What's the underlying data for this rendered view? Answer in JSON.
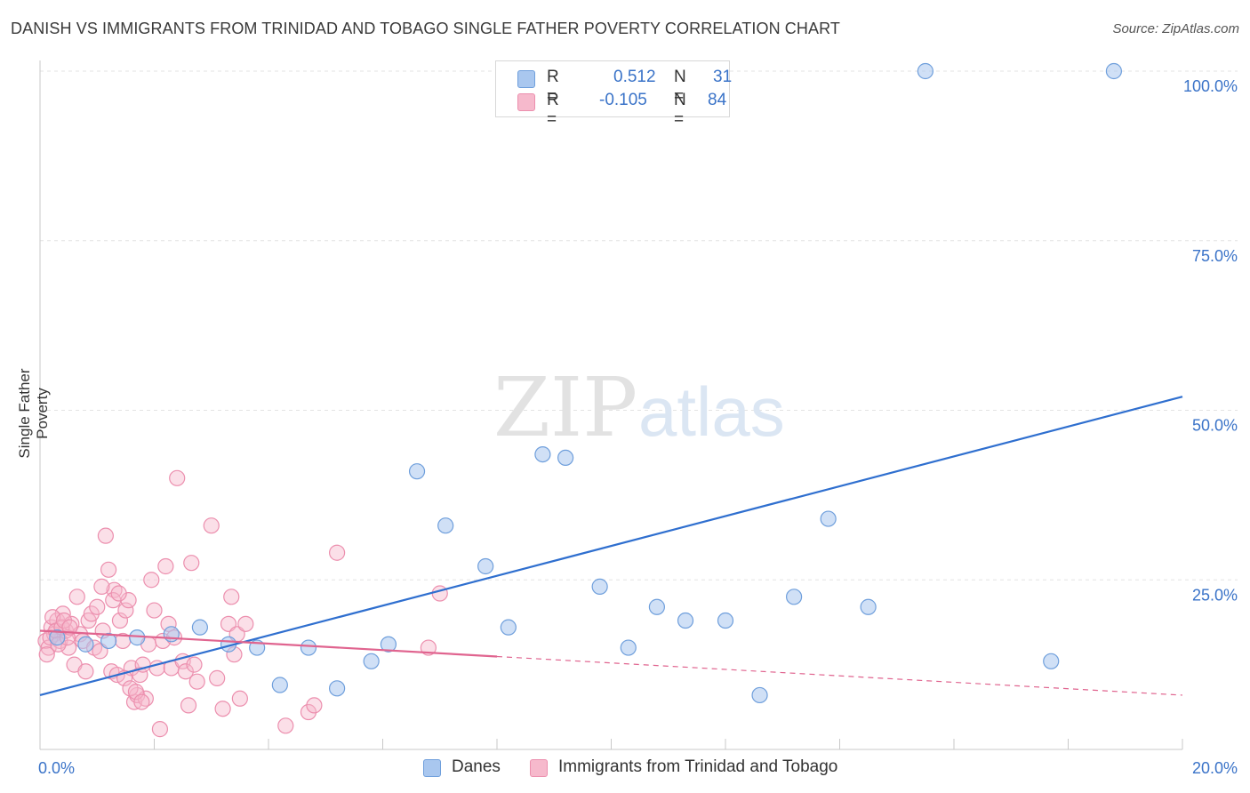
{
  "title": "DANISH VS IMMIGRANTS FROM TRINIDAD AND TOBAGO SINGLE FATHER POVERTY CORRELATION CHART",
  "source": "Source: ZipAtlas.com",
  "watermark": {
    "zip": "ZIP",
    "atlas": "atlas"
  },
  "colors": {
    "blue_fill": "#a9c7ef",
    "blue_stroke": "#6f9fdc",
    "blue_line": "#2f6fcf",
    "pink_fill": "#f6b9cc",
    "pink_stroke": "#ec8fae",
    "pink_line": "#e0648f",
    "axis_text": "#3a73c8",
    "grid": "#e3e3e3"
  },
  "legend": {
    "r_label": "R =",
    "n_label": "N =",
    "series": [
      {
        "r": "0.512",
        "n": "31"
      },
      {
        "r": "-0.105",
        "n": "84"
      }
    ]
  },
  "bottom_legend": [
    "Danes",
    "Immigrants from Trinidad and Tobago"
  ],
  "chart_data": {
    "type": "scatter",
    "ylabel": "Single Father Poverty",
    "xlim": [
      0,
      20
    ],
    "ylim": [
      0,
      105
    ],
    "x_tick_labels": [
      {
        "value": 0,
        "label": "0.0%"
      },
      {
        "value": 20,
        "label": "20.0%"
      }
    ],
    "y_tick_labels": [
      {
        "value": 25,
        "label": "25.0%"
      },
      {
        "value": 50,
        "label": "50.0%"
      },
      {
        "value": 75,
        "label": "75.0%"
      },
      {
        "value": 100,
        "label": "100.0%"
      }
    ],
    "grid": true,
    "legend_position": "top-center",
    "series": [
      {
        "name": "Danes",
        "points": [
          [
            0.3,
            16.5
          ],
          [
            1.2,
            16
          ],
          [
            1.7,
            16.5
          ],
          [
            2.3,
            17
          ],
          [
            2.8,
            18
          ],
          [
            3.3,
            15.5
          ],
          [
            3.8,
            15
          ],
          [
            4.2,
            9.5
          ],
          [
            4.7,
            15
          ],
          [
            5.2,
            9
          ],
          [
            5.8,
            13
          ],
          [
            6.1,
            15.5
          ],
          [
            6.6,
            41
          ],
          [
            7.1,
            33
          ],
          [
            7.8,
            27
          ],
          [
            8.2,
            18
          ],
          [
            8.8,
            43.5
          ],
          [
            9.2,
            43
          ],
          [
            9.8,
            24
          ],
          [
            10.3,
            15
          ],
          [
            10.8,
            21
          ],
          [
            11.3,
            19
          ],
          [
            12.0,
            19
          ],
          [
            12.6,
            8
          ],
          [
            13.2,
            22.5
          ],
          [
            13.8,
            34
          ],
          [
            14.5,
            21
          ],
          [
            15.5,
            100
          ],
          [
            18.8,
            100
          ],
          [
            17.7,
            13
          ],
          [
            0.8,
            15.5
          ]
        ],
        "trend": {
          "x": [
            0,
            20
          ],
          "y": [
            8,
            52
          ]
        }
      },
      {
        "name": "Immigrants from Trinidad and Tobago",
        "points": [
          [
            0.1,
            16
          ],
          [
            0.15,
            15
          ],
          [
            0.2,
            18
          ],
          [
            0.25,
            17
          ],
          [
            0.3,
            19
          ],
          [
            0.35,
            16
          ],
          [
            0.4,
            20
          ],
          [
            0.45,
            17.5
          ],
          [
            0.5,
            15
          ],
          [
            0.55,
            18.5
          ],
          [
            0.6,
            12.5
          ],
          [
            0.65,
            22.5
          ],
          [
            0.7,
            17
          ],
          [
            0.75,
            16
          ],
          [
            0.8,
            11.5
          ],
          [
            0.85,
            19
          ],
          [
            0.9,
            20
          ],
          [
            0.95,
            15
          ],
          [
            1.0,
            21
          ],
          [
            1.05,
            14.5
          ],
          [
            1.1,
            17.5
          ],
          [
            1.15,
            31.5
          ],
          [
            1.2,
            26.5
          ],
          [
            1.25,
            11.5
          ],
          [
            1.3,
            23.5
          ],
          [
            1.35,
            11
          ],
          [
            1.4,
            19
          ],
          [
            1.45,
            16
          ],
          [
            1.5,
            20.5
          ],
          [
            1.55,
            22
          ],
          [
            1.6,
            12
          ],
          [
            1.65,
            7
          ],
          [
            1.7,
            8
          ],
          [
            1.75,
            11
          ],
          [
            1.8,
            12.5
          ],
          [
            1.85,
            7.5
          ],
          [
            1.9,
            15.5
          ],
          [
            1.95,
            25
          ],
          [
            2.0,
            20.5
          ],
          [
            2.05,
            12
          ],
          [
            2.1,
            3
          ],
          [
            2.15,
            16
          ],
          [
            2.2,
            27
          ],
          [
            2.25,
            18.5
          ],
          [
            2.3,
            12
          ],
          [
            2.35,
            16.5
          ],
          [
            2.4,
            40
          ],
          [
            2.5,
            13
          ],
          [
            2.55,
            11.5
          ],
          [
            2.6,
            6.5
          ],
          [
            2.65,
            27.5
          ],
          [
            2.7,
            12.5
          ],
          [
            2.75,
            10
          ],
          [
            3.0,
            33
          ],
          [
            3.1,
            10.5
          ],
          [
            3.2,
            6
          ],
          [
            3.3,
            18.5
          ],
          [
            3.35,
            22.5
          ],
          [
            3.4,
            14
          ],
          [
            3.45,
            17
          ],
          [
            3.5,
            7.5
          ],
          [
            3.6,
            18.5
          ],
          [
            4.3,
            3.5
          ],
          [
            4.7,
            5.5
          ],
          [
            4.8,
            6.5
          ],
          [
            5.2,
            29
          ],
          [
            6.8,
            15
          ],
          [
            7.0,
            23
          ],
          [
            0.12,
            14
          ],
          [
            0.18,
            16.5
          ],
          [
            0.22,
            19.5
          ],
          [
            0.28,
            17.5
          ],
          [
            0.32,
            15.5
          ],
          [
            0.38,
            18
          ],
          [
            0.42,
            19
          ],
          [
            0.48,
            16.5
          ],
          [
            0.52,
            18
          ],
          [
            1.08,
            24
          ],
          [
            1.28,
            22
          ],
          [
            1.38,
            23
          ],
          [
            1.48,
            10.5
          ],
          [
            1.58,
            9
          ],
          [
            1.68,
            8.5
          ],
          [
            1.78,
            7
          ]
        ],
        "trend": {
          "x": [
            0,
            20
          ],
          "y": [
            17.5,
            8
          ]
        },
        "trend_solid_until": 8
      }
    ]
  }
}
